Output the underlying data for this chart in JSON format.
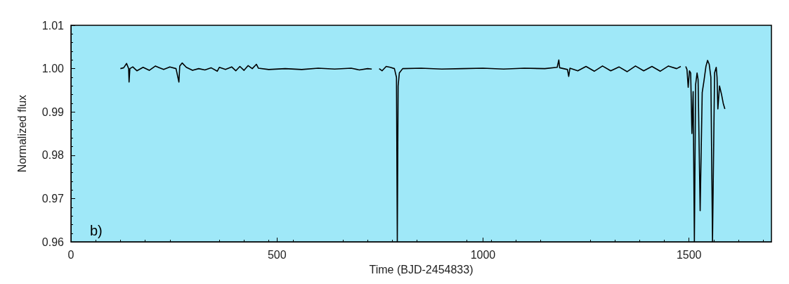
{
  "chart_data": {
    "type": "line",
    "xlabel": "Time (BJD-2454833)",
    "ylabel": "Normalized flux",
    "annotations": [
      "b)"
    ],
    "xlim": [
      0,
      1700
    ],
    "xticks": [
      0,
      500,
      1000,
      1500
    ],
    "ylim": [
      0.96,
      1.01
    ],
    "yticks": [
      0.96,
      0.97,
      0.98,
      0.99,
      {
        "value": 1,
        "label": "1.00"
      },
      1.01
    ],
    "grid": false,
    "marker": "none",
    "line_style": "solid",
    "series": [
      {
        "color": "#000000",
        "x": [
          120,
          128,
          135,
          140,
          141,
          143,
          150,
          160,
          175,
          190,
          205,
          215,
          225,
          240,
          255,
          262,
          264,
          270,
          280,
          295,
          310,
          325,
          340,
          355,
          360,
          375,
          390,
          400,
          410,
          420,
          430,
          440,
          450,
          455,
          480,
          520,
          560,
          600,
          640,
          680,
          700,
          720,
          730,
          740,
          748,
          755,
          765,
          775,
          785,
          790,
          792,
          794,
          797,
          805,
          850,
          900,
          950,
          1000,
          1050,
          1100,
          1150,
          1180,
          1184,
          1186,
          1205,
          1208,
          1211,
          1230,
          1250,
          1270,
          1290,
          1310,
          1330,
          1350,
          1370,
          1390,
          1410,
          1430,
          1450,
          1470,
          1480,
          1486,
          1492,
          1495,
          1498,
          1501,
          1504,
          1507,
          1510,
          1513,
          1516,
          1519.5,
          1522,
          1527,
          1532,
          1536,
          1541,
          1545,
          1549,
          1553,
          1557,
          1562,
          1566,
          1568,
          1570,
          1574,
          1579,
          1583,
          1587
        ],
        "values": [
          1.0,
          1.0002,
          1.0012,
          1.0,
          0.9969,
          1.0,
          1.0004,
          0.9995,
          1.0003,
          0.9996,
          1.0006,
          1.0002,
          0.9998,
          1.0004,
          1.0,
          0.9969,
          1.0006,
          1.0013,
          1.0003,
          0.9996,
          1.0,
          0.9997,
          1.0002,
          0.9994,
          1.0003,
          0.9998,
          1.0004,
          0.9995,
          1.0005,
          0.9996,
          1.0007,
          1.0,
          1.001,
          1.0001,
          0.9998,
          1.0,
          0.9998,
          1.0001,
          0.9999,
          1.0001,
          0.9997,
          1.0,
          0.9999,
          null,
          1.0,
          0.9995,
          1.0005,
          1.0003,
          1.0,
          0.998,
          0.96,
          0.996,
          0.999,
          1.0,
          1.0001,
          0.9999,
          1.0,
          1.0001,
          0.9999,
          1.0001,
          1.0,
          1.0003,
          1.002,
          1.0002,
          0.9998,
          0.9982,
          1.0001,
          0.9995,
          1.0005,
          0.9994,
          1.0006,
          0.9995,
          1.0004,
          0.9993,
          1.0006,
          0.9995,
          1.0005,
          0.9994,
          1.0006,
          1.0,
          1.0005,
          null,
          1.0005,
          0.9998,
          0.9957,
          0.9995,
          0.999,
          0.985,
          0.9947,
          0.96,
          0.9963,
          0.999,
          0.9975,
          0.9672,
          0.9945,
          0.997,
          1.0005,
          1.0019,
          1.001,
          0.998,
          0.96,
          0.999,
          1.0003,
          0.998,
          0.9907,
          0.996,
          0.994,
          0.992,
          0.9907
        ]
      }
    ]
  }
}
